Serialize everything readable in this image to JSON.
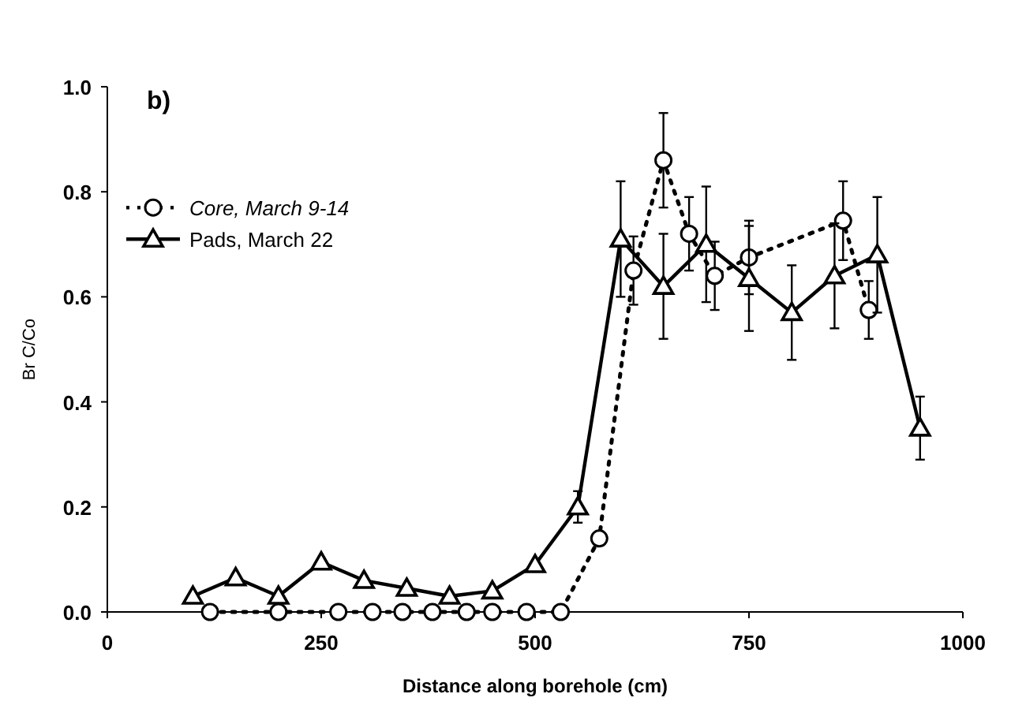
{
  "chart_data": {
    "type": "line",
    "title": "b)",
    "xlabel": "Distance along borehole (cm)",
    "ylabel": "Br C/Co",
    "xlim": [
      0,
      1000
    ],
    "xticks": [
      0,
      250,
      500,
      750,
      1000
    ],
    "ylim": [
      0,
      1
    ],
    "yticks": [
      {
        "value": 0,
        "label": "0.0"
      },
      {
        "value": 0.2,
        "label": "0.2"
      },
      {
        "value": 0.4,
        "label": "0.4"
      },
      {
        "value": 0.6,
        "label": "0.6"
      },
      {
        "value": 0.8,
        "label": "0.8"
      },
      {
        "value": 1,
        "label": "1.0"
      }
    ],
    "grid": false,
    "legend": "top left",
    "series": [
      {
        "name": "Core, March 9-14",
        "color": "#000000",
        "marker": "circle",
        "line_style": "dotted",
        "x": [
          120,
          200,
          270,
          310,
          345,
          380,
          420,
          450,
          490,
          530,
          575,
          615,
          650,
          680,
          710,
          750,
          860,
          890
        ],
        "values": [
          0,
          0,
          0,
          0,
          0,
          0,
          0,
          0,
          0,
          0,
          0.14,
          0.65,
          0.86,
          0.72,
          0.64,
          0.675,
          0.745,
          0.575
        ],
        "errors": [
          null,
          null,
          null,
          null,
          null,
          null,
          null,
          null,
          null,
          null,
          null,
          0.065,
          0.09,
          0.07,
          0.065,
          0.07,
          0.075,
          0.055
        ]
      },
      {
        "name": "Pads, March 22",
        "color": "#000000",
        "marker": "triangle",
        "line_style": "solid",
        "x": [
          100,
          150,
          200,
          250,
          300,
          350,
          400,
          450,
          500,
          550,
          600,
          650,
          700,
          750,
          800,
          850,
          900,
          950
        ],
        "values": [
          0.03,
          0.065,
          0.03,
          0.095,
          0.06,
          0.045,
          0.03,
          0.04,
          0.09,
          0.2,
          0.71,
          0.62,
          0.7,
          0.635,
          0.57,
          0.64,
          0.68,
          0.35
        ],
        "errors": [
          null,
          null,
          null,
          null,
          null,
          null,
          null,
          null,
          null,
          0.03,
          0.11,
          0.1,
          0.11,
          0.1,
          0.09,
          0.1,
          0.11,
          0.06
        ]
      }
    ]
  }
}
